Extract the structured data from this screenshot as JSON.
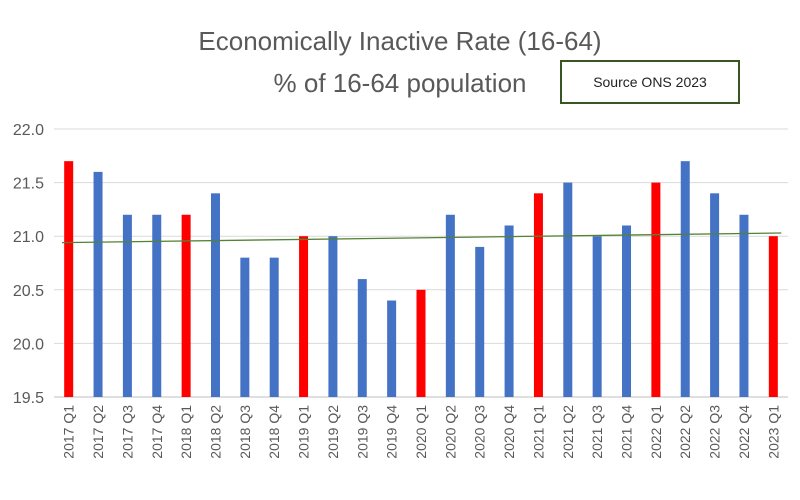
{
  "chart_data": {
    "type": "bar",
    "title": "Economically Inactive Rate (16-64)",
    "subtitle": "% of 16-64 population",
    "annotation": "Source ONS 2023",
    "categories": [
      "2017 Q1",
      "2017 Q2",
      "2017 Q3",
      "2017 Q4",
      "2018 Q1",
      "2018 Q2",
      "2018 Q3",
      "2018 Q4",
      "2019 Q1",
      "2019 Q2",
      "2019 Q3",
      "2019 Q4",
      "2020 Q1",
      "2020 Q2",
      "2020 Q3",
      "2020 Q4",
      "2021 Q1",
      "2021 Q2",
      "2021 Q3",
      "2021 Q4",
      "2022 Q1",
      "2022 Q2",
      "2022 Q3",
      "2022 Q4",
      "2023 Q1"
    ],
    "values": [
      21.7,
      21.6,
      21.2,
      21.2,
      21.2,
      21.4,
      20.8,
      20.8,
      21.0,
      21.0,
      20.6,
      20.4,
      20.5,
      21.2,
      20.9,
      21.1,
      21.4,
      21.5,
      21.0,
      21.1,
      21.5,
      21.7,
      21.4,
      21.2,
      21.0
    ],
    "ylim": [
      19.5,
      22.0
    ],
    "yticks": [
      "19.5",
      "20.0",
      "20.5",
      "21.0",
      "21.5",
      "22.0"
    ],
    "trendline": {
      "start": 20.94,
      "end": 21.03
    },
    "grid": true,
    "legend": "none",
    "colors": {
      "q1": "#ff0000",
      "other": "#4472c4",
      "trend": "#548235",
      "grid": "#d9d9d9",
      "axis": "#bfbfbf"
    }
  }
}
